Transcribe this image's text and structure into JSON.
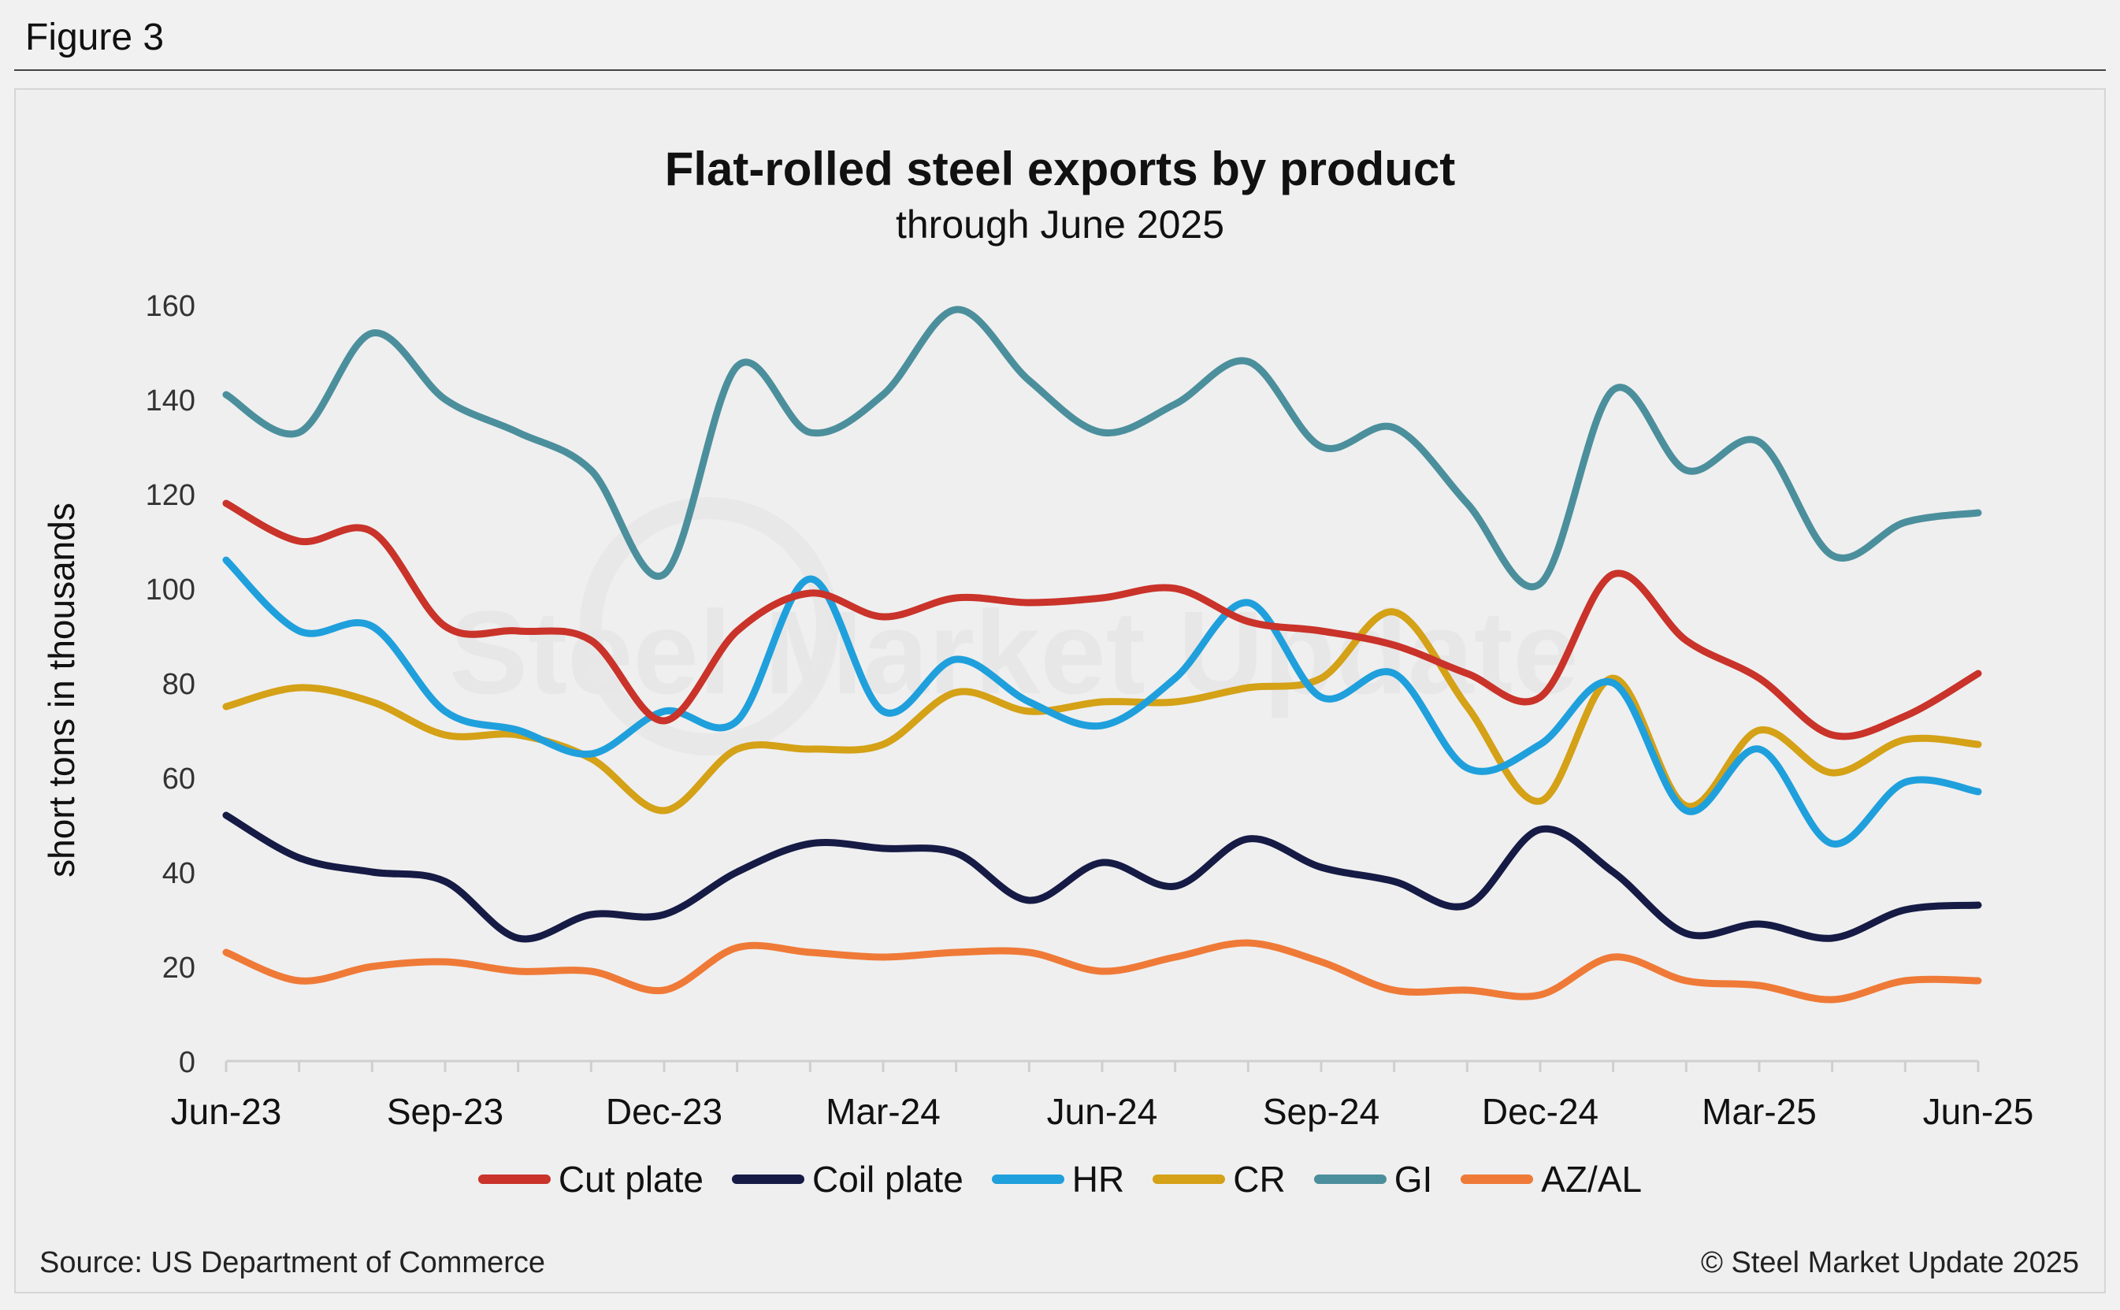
{
  "figure_label": "Figure 3",
  "source": "Source: US Department of Commerce",
  "copyright": "© Steel Market Update 2025",
  "watermark": "Steel Market Update",
  "chart_data": {
    "type": "line",
    "title": "Flat-rolled steel exports by product",
    "subtitle": "through June 2025",
    "ylabel": "short tons in thousands",
    "xlabel": "",
    "ylim": [
      0,
      160
    ],
    "yticks": [
      0,
      20,
      40,
      60,
      80,
      100,
      120,
      140,
      160
    ],
    "categories": [
      "Jun-23",
      "Jul-23",
      "Aug-23",
      "Sep-23",
      "Oct-23",
      "Nov-23",
      "Dec-23",
      "Jan-24",
      "Feb-24",
      "Mar-24",
      "Apr-24",
      "May-24",
      "Jun-24",
      "Jul-24",
      "Aug-24",
      "Sep-24",
      "Oct-24",
      "Nov-24",
      "Dec-24",
      "Jan-25",
      "Feb-25",
      "Mar-25",
      "Apr-25",
      "May-25",
      "Jun-25"
    ],
    "xtick_labels": [
      "Jun-23",
      "Sep-23",
      "Dec-23",
      "Mar-24",
      "Jun-24",
      "Sep-24",
      "Dec-24",
      "Mar-25",
      "Jun-25"
    ],
    "legend_position": "bottom",
    "grid": false,
    "series": [
      {
        "name": "Cut plate",
        "color": "#c9332a",
        "values": [
          118,
          110,
          112,
          92,
          91,
          89,
          72,
          91,
          99,
          94,
          98,
          97,
          98,
          100,
          93,
          91,
          88,
          82,
          77,
          103,
          89,
          81,
          69,
          73,
          82
        ]
      },
      {
        "name": "Coil plate",
        "color": "#161b45",
        "values": [
          52,
          43,
          40,
          38,
          26,
          31,
          31,
          40,
          46,
          45,
          44,
          34,
          42,
          37,
          47,
          41,
          38,
          33,
          49,
          40,
          27,
          29,
          26,
          32,
          33
        ]
      },
      {
        "name": "HR",
        "color": "#1fa0dc",
        "values": [
          106,
          91,
          92,
          74,
          70,
          65,
          74,
          72,
          102,
          74,
          85,
          76,
          71,
          81,
          97,
          77,
          82,
          62,
          67,
          80,
          53,
          66,
          46,
          59,
          57
        ]
      },
      {
        "name": "CR",
        "color": "#d4a117",
        "values": [
          75,
          79,
          76,
          69,
          69,
          64,
          53,
          66,
          66,
          67,
          78,
          74,
          76,
          76,
          79,
          81,
          95,
          75,
          55,
          81,
          54,
          70,
          61,
          68,
          67
        ]
      },
      {
        "name": "GI",
        "color": "#4c8f9c",
        "values": [
          141,
          133,
          154,
          140,
          133,
          125,
          103,
          147,
          133,
          141,
          159,
          144,
          133,
          139,
          148,
          130,
          134,
          118,
          101,
          142,
          125,
          131,
          107,
          114,
          116
        ]
      },
      {
        "name": "AZ/AL",
        "color": "#ef7a37",
        "values": [
          23,
          17,
          20,
          21,
          19,
          19,
          15,
          24,
          23,
          22,
          23,
          23,
          19,
          22,
          25,
          21,
          15,
          15,
          14,
          22,
          17,
          16,
          13,
          17,
          17
        ]
      }
    ]
  }
}
